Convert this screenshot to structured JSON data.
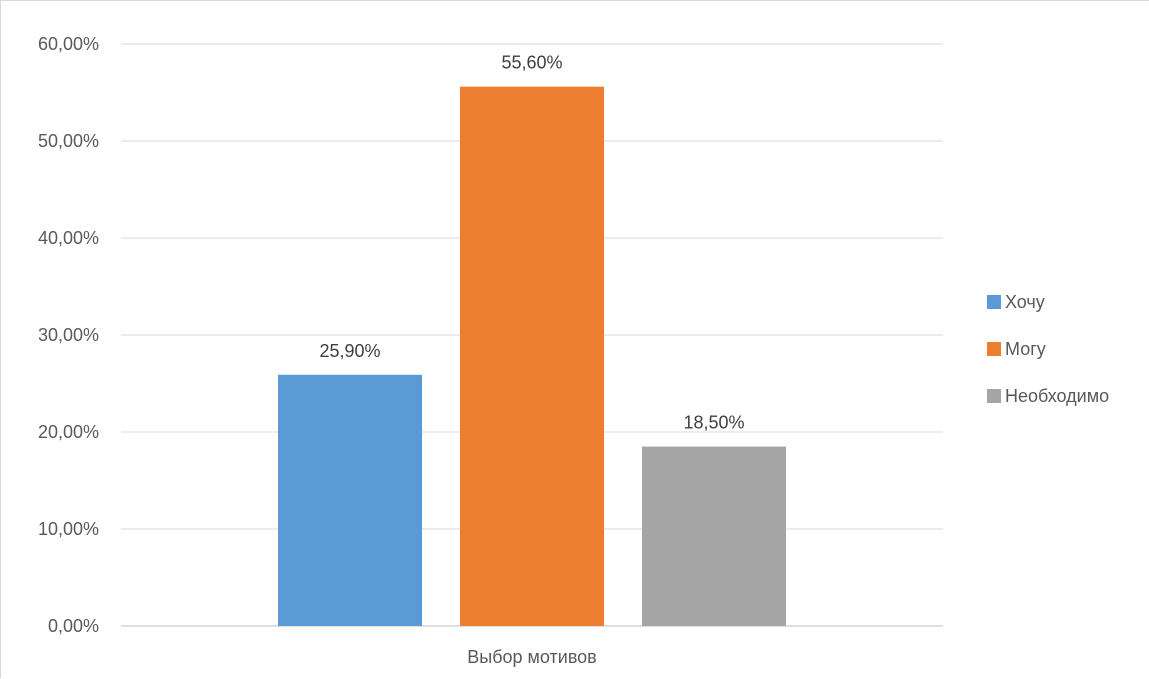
{
  "chart_data": {
    "type": "bar",
    "categories": [
      "Выбор мотивов"
    ],
    "series": [
      {
        "name": "Хочу",
        "values": [
          25.9
        ],
        "color": "#5b9bd5"
      },
      {
        "name": "Могу",
        "values": [
          55.6
        ],
        "color": "#ed7d31"
      },
      {
        "name": "Необходимо",
        "values": [
          18.5
        ],
        "color": "#a5a5a5"
      }
    ],
    "data_labels": [
      "25,90%",
      "55,60%",
      "18,50%"
    ],
    "yticks": [
      0,
      10,
      20,
      30,
      40,
      50,
      60
    ],
    "ytick_labels": [
      "0,00%",
      "10,00%",
      "20,00%",
      "30,00%",
      "40,00%",
      "50,00%",
      "60,00%"
    ],
    "ylim": [
      0,
      60
    ],
    "title": "",
    "xlabel": "",
    "ylabel": "",
    "grid": true,
    "legend_position": "right"
  }
}
